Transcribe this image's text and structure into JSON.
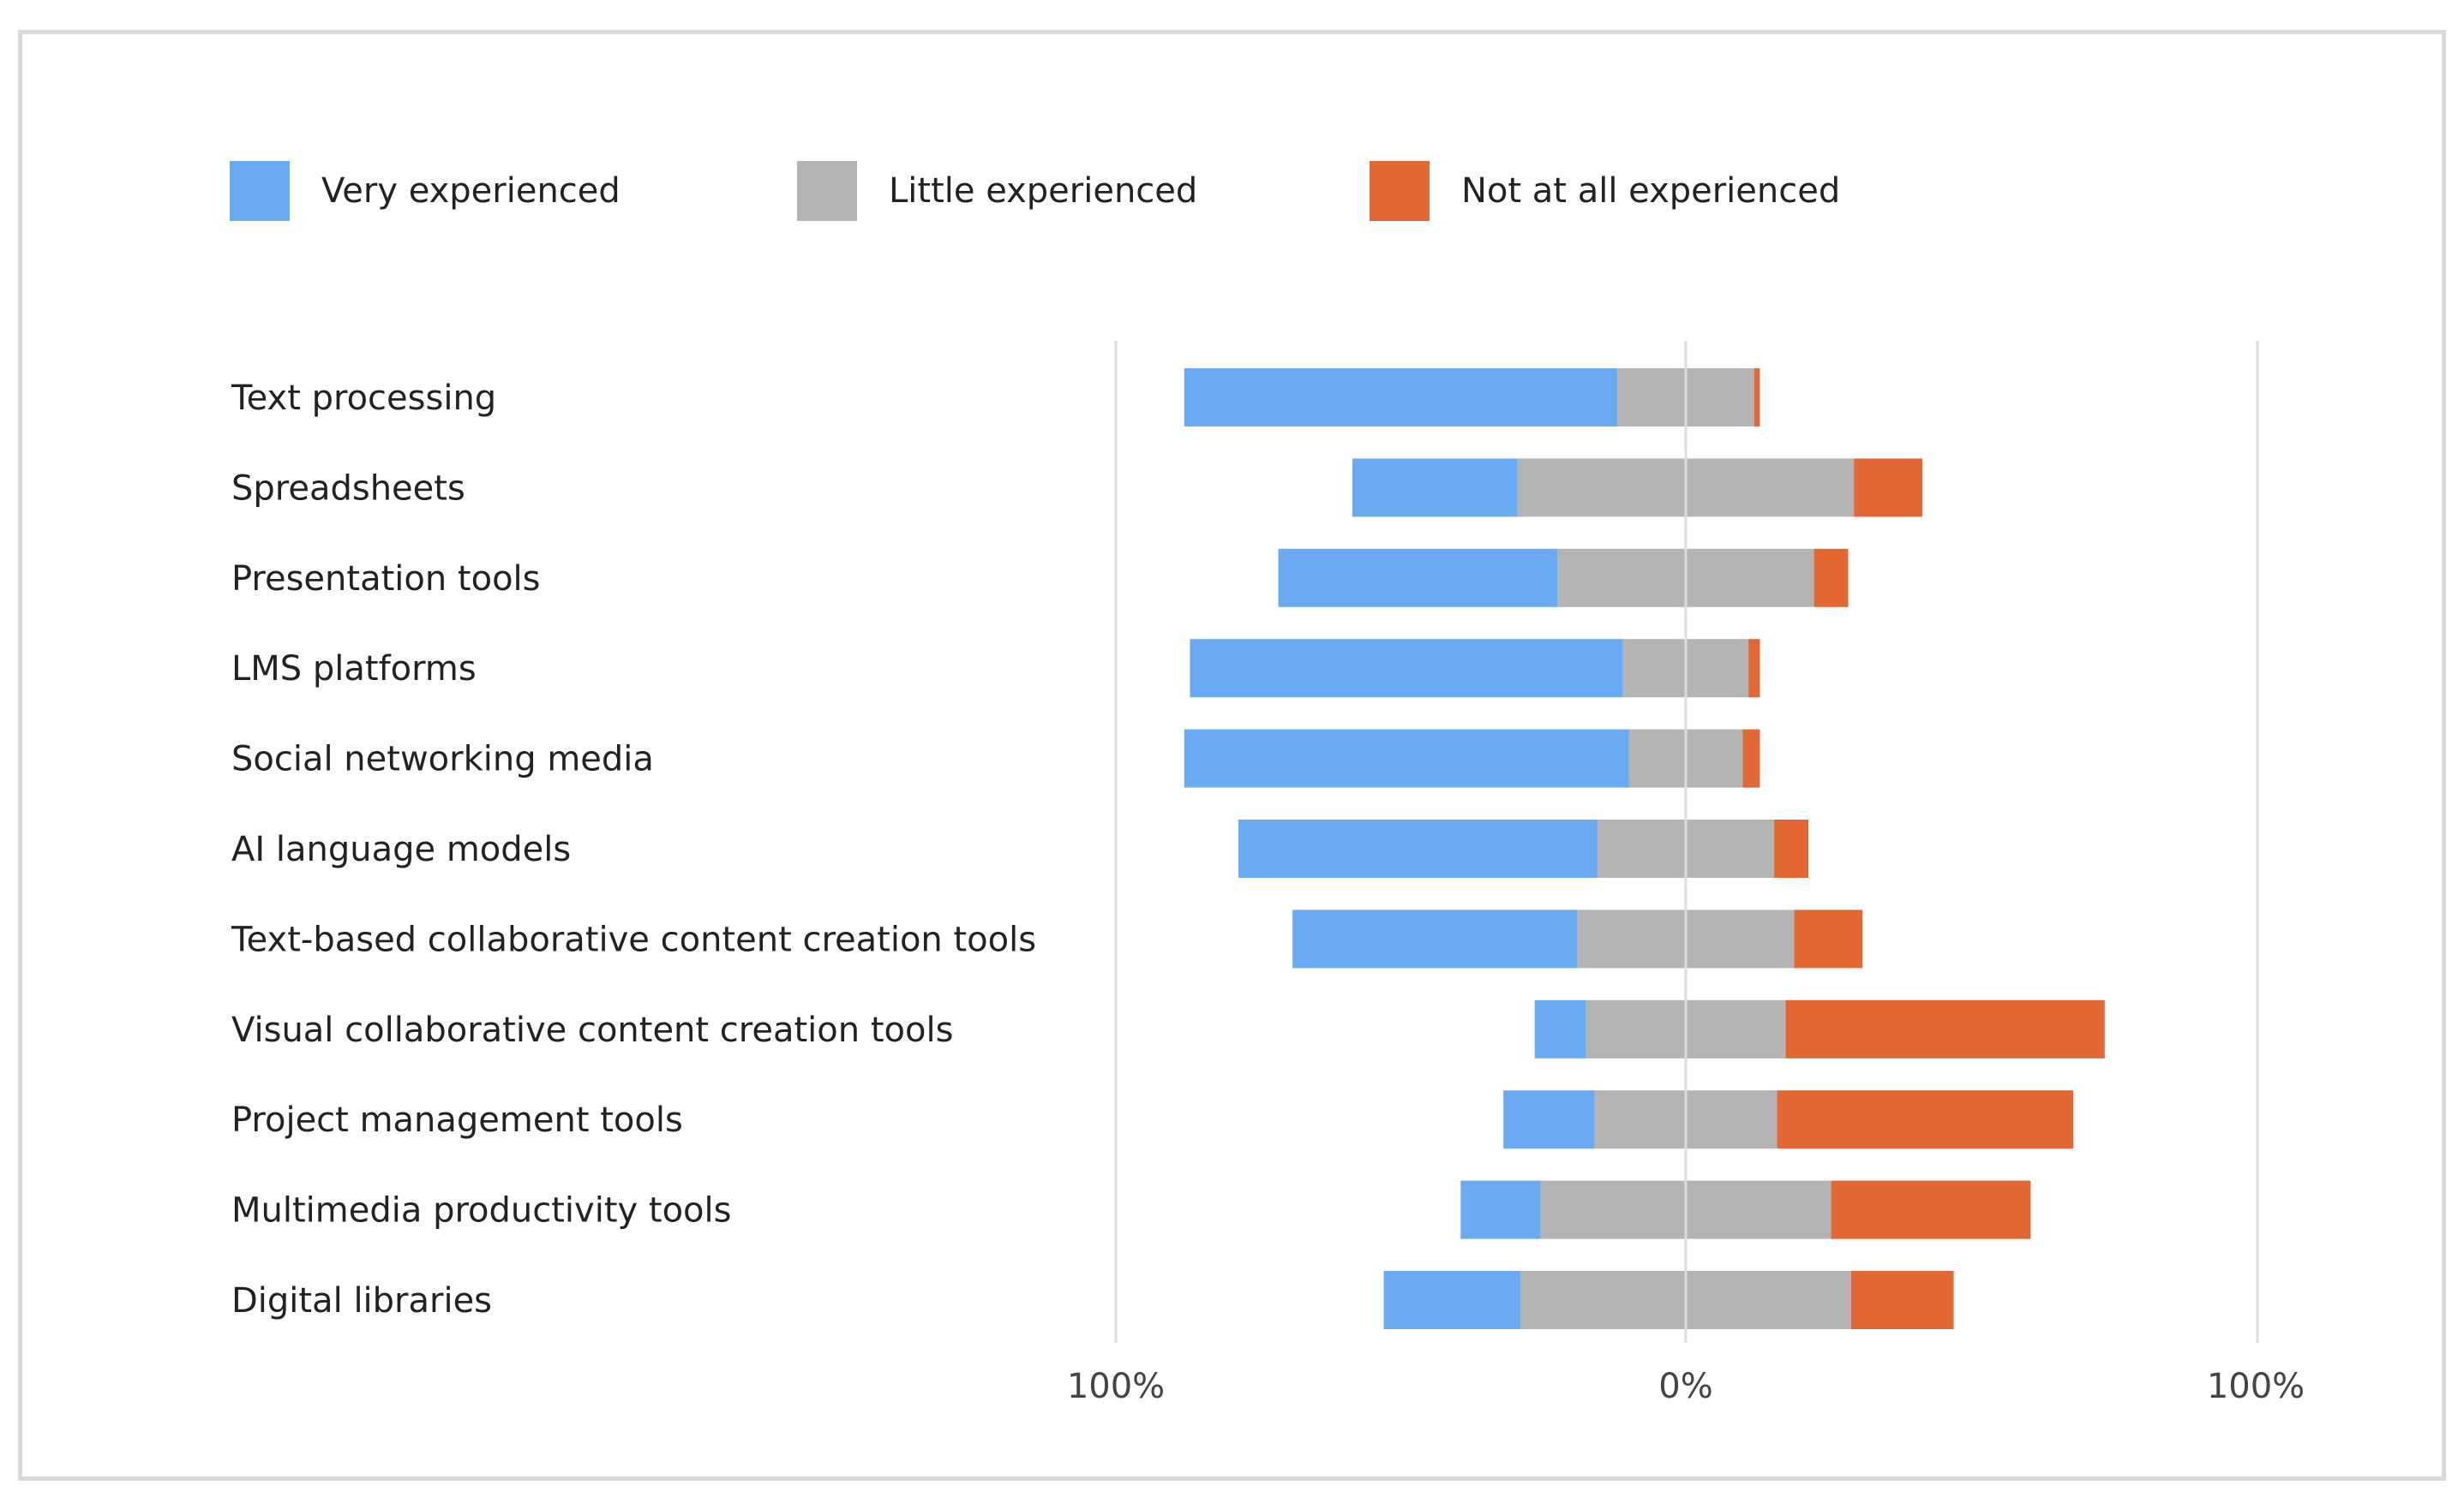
{
  "chart_data": {
    "type": "bar",
    "orientation": "horizontal",
    "stacking": "diverging",
    "title": "",
    "xlabel": "",
    "ylabel": "",
    "xlim": [
      -100,
      100
    ],
    "xticks": [
      "100%",
      "0%",
      "100%"
    ],
    "legend_position": "top",
    "grid": false,
    "categories": [
      "Text processing",
      "Spreadsheets",
      "Presentation tools",
      "LMS platforms",
      "Social networking media",
      "AI language models",
      "Text-based collaborative content creation tools",
      "Visual collaborative content creation tools",
      "Project management tools",
      "Multimedia productivity tools",
      "Digital libraries"
    ],
    "series": [
      {
        "name": "Very experienced",
        "color": "#6aaaf2",
        "values": [
          76,
          29,
          49,
          76,
          78,
          63,
          50,
          9,
          16,
          14,
          24
        ]
      },
      {
        "name": "Little experienced",
        "color": "#b4b4b4",
        "values": [
          24,
          59,
          45,
          22,
          20,
          31,
          38,
          35,
          32,
          51,
          58
        ]
      },
      {
        "name": "Not at all experienced",
        "color": "#e26733",
        "values": [
          1,
          12,
          6,
          2,
          3,
          6,
          12,
          56,
          52,
          35,
          18
        ]
      }
    ]
  }
}
